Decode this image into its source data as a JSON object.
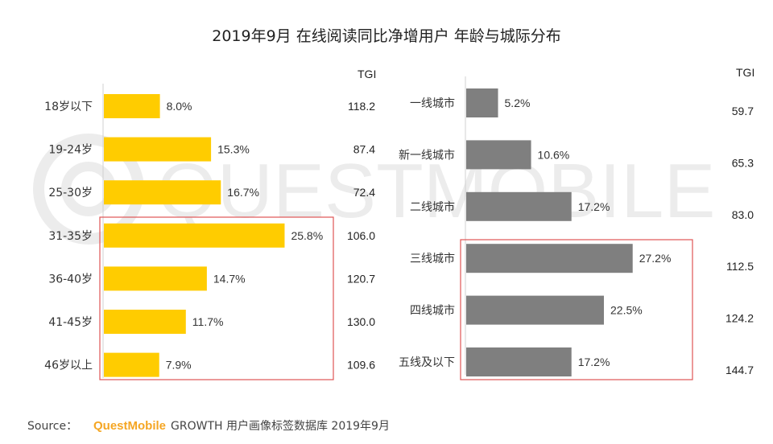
{
  "title": "2019年9月 在线阅读同比净增用户 年龄与城际分布",
  "watermark": "QUESTMOBILE",
  "source": {
    "label": "Source：",
    "brand": "QuestMobile",
    "text": "GROWTH 用户画像标签数据库 2019年9月"
  },
  "colors": {
    "age_bar": "#FFCC00",
    "city_bar": "#7F7F7F",
    "highlight_box": "#E05555",
    "brand": "#F5A623",
    "text": "#333333"
  },
  "chart_data": [
    {
      "type": "bar",
      "orientation": "horizontal",
      "name": "age",
      "tgi_header": "TGI",
      "categories": [
        "18岁以下",
        "19-24岁",
        "25-30岁",
        "31-35岁",
        "36-40岁",
        "41-45岁",
        "46岁以上"
      ],
      "values": [
        8.0,
        15.3,
        16.7,
        25.8,
        14.7,
        11.7,
        7.9
      ],
      "value_labels": [
        "8.0%",
        "15.3%",
        "16.7%",
        "25.8%",
        "14.7%",
        "11.7%",
        "7.9%"
      ],
      "tgi": [
        "118.2",
        "87.4",
        "72.4",
        "106.0",
        "120.7",
        "130.0",
        "109.6"
      ],
      "highlight": [
        "31-35岁",
        "36-40岁",
        "41-45岁",
        "46岁以上"
      ],
      "grid": false
    },
    {
      "type": "bar",
      "orientation": "horizontal",
      "name": "city",
      "tgi_header": "TGI",
      "categories": [
        "一线城市",
        "新一线城市",
        "二线城市",
        "三线城市",
        "四线城市",
        "五线及以下"
      ],
      "values": [
        5.2,
        10.6,
        17.2,
        27.2,
        22.5,
        17.2
      ],
      "value_labels": [
        "5.2%",
        "10.6%",
        "17.2%",
        "27.2%",
        "22.5%",
        "17.2%"
      ],
      "tgi": [
        "59.7",
        "65.3",
        "83.0",
        "112.5",
        "124.2",
        "144.7"
      ],
      "highlight": [
        "三线城市",
        "四线城市",
        "五线及以下"
      ],
      "grid": false
    }
  ]
}
